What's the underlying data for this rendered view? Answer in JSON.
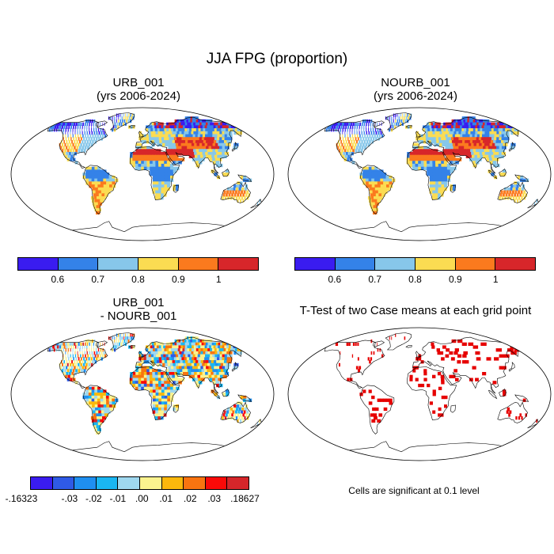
{
  "figure": {
    "title": "JJA FPG (proportion)"
  },
  "panels": {
    "urb": {
      "title_line1": "URB_001",
      "title_line2": "(yrs 2006-2024)"
    },
    "nourb": {
      "title_line1": "NOURB_001",
      "title_line2": "(yrs 2006-2024)"
    },
    "diff": {
      "title_line1": "URB_001",
      "title_line2": "- NOURB_001"
    },
    "ttest": {
      "title": "T-Test of two Case means at each grid point",
      "note": "Cells are significant at 0.1 level"
    }
  },
  "colorbars": {
    "fpg": {
      "colors": [
        "#3a1cf0",
        "#3482e8",
        "#87c7ea",
        "#fbdc52",
        "#fb7a1e",
        "#d7262a"
      ],
      "labels": [
        "0.6",
        "0.7",
        "0.8",
        "0.9",
        "1"
      ]
    },
    "diff": {
      "colors": [
        "#3a1cf0",
        "#2f5ae6",
        "#1f8ff0",
        "#1ab6f2",
        "#9fd8ef",
        "#fbf38f",
        "#fbb80c",
        "#f97410",
        "#fa0a08",
        "#d5262a"
      ],
      "labels": [
        ".16323",
        "-.03",
        "-.02",
        "-.01",
        ".00",
        ".01",
        ".02",
        ".03",
        ".18627"
      ]
    }
  },
  "significance_color": "#e60000"
}
